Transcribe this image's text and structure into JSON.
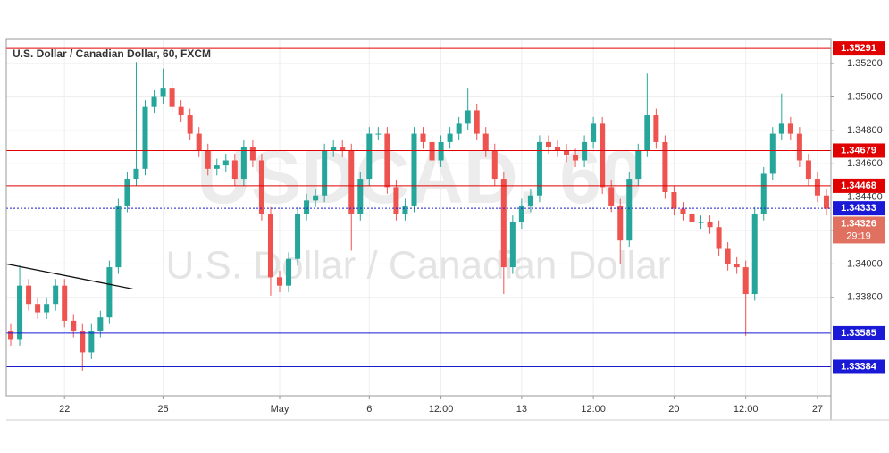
{
  "chart_data": {
    "type": "candlestick",
    "title": "U.S. Dollar / Canadian Dollar, 60, FXCM",
    "watermark": [
      "USDCAD, 60",
      "U.S. Dollar / Canadian Dollar"
    ],
    "open": [
      1.336,
      1.3355,
      1.3387,
      1.3376,
      1.3371,
      1.3376,
      1.3387,
      1.3366,
      1.336,
      1.3347,
      1.336,
      1.3368,
      1.3398,
      1.3435,
      1.3451,
      1.3457,
      1.3494,
      1.35,
      1.3505,
      1.3494,
      1.3489,
      1.3478,
      1.3468,
      1.3457,
      1.3459,
      1.3462,
      1.3451,
      1.347,
      1.3462,
      1.343,
      1.3392,
      1.3387,
      1.3403,
      1.343,
      1.3438,
      1.3441,
      1.3468,
      1.347,
      1.3468,
      1.343,
      1.3451,
      1.3478,
      1.3478,
      1.3446,
      1.343,
      1.3435,
      1.3478,
      1.3473,
      1.3462,
      1.3473,
      1.3478,
      1.3484,
      1.3492,
      1.3478,
      1.3468,
      1.3451,
      1.3398,
      1.3425,
      1.3435,
      1.3441,
      1.3473,
      1.347,
      1.3468,
      1.3465,
      1.3462,
      1.3473,
      1.3484,
      1.3446,
      1.3435,
      1.3414,
      1.3451,
      1.3468,
      1.3489,
      1.3473,
      1.3443,
      1.3433,
      1.343,
      1.3425,
      1.3425,
      1.3422,
      1.3409,
      1.34,
      1.3398,
      1.3382,
      1.343,
      1.3454,
      1.3478,
      1.3484,
      1.3478,
      1.3462,
      1.3451,
      1.3441
    ],
    "high": [
      1.3364,
      1.3399,
      1.3391,
      1.338,
      1.338,
      1.3391,
      1.3391,
      1.337,
      1.3364,
      1.3364,
      1.3372,
      1.3402,
      1.3439,
      1.3455,
      1.3521,
      1.3498,
      1.3504,
      1.3517,
      1.3509,
      1.3498,
      1.3493,
      1.3482,
      1.3472,
      1.3463,
      1.3466,
      1.3466,
      1.3474,
      1.3474,
      1.3466,
      1.3434,
      1.3396,
      1.3407,
      1.3434,
      1.3442,
      1.3445,
      1.3472,
      1.3474,
      1.3474,
      1.3472,
      1.3455,
      1.3482,
      1.3482,
      1.3482,
      1.345,
      1.3439,
      1.3482,
      1.3482,
      1.3477,
      1.3477,
      1.3482,
      1.3488,
      1.3505,
      1.3496,
      1.3482,
      1.3472,
      1.3455,
      1.3429,
      1.3439,
      1.3445,
      1.3477,
      1.3477,
      1.3474,
      1.3472,
      1.3469,
      1.3477,
      1.3488,
      1.3488,
      1.345,
      1.3439,
      1.3455,
      1.3472,
      1.3514,
      1.3493,
      1.3477,
      1.3447,
      1.3437,
      1.3434,
      1.3429,
      1.3429,
      1.3426,
      1.3413,
      1.3404,
      1.3402,
      1.3434,
      1.3458,
      1.3482,
      1.3502,
      1.3488,
      1.3482,
      1.3466,
      1.3455,
      1.3445
    ],
    "low": [
      1.3351,
      1.3351,
      1.3372,
      1.3367,
      1.3367,
      1.3372,
      1.3362,
      1.3356,
      1.3336,
      1.3343,
      1.3356,
      1.3364,
      1.3394,
      1.3431,
      1.3447,
      1.3453,
      1.349,
      1.3496,
      1.349,
      1.3485,
      1.3474,
      1.3464,
      1.3453,
      1.3453,
      1.3455,
      1.3447,
      1.3447,
      1.3458,
      1.3426,
      1.3381,
      1.3383,
      1.3383,
      1.3399,
      1.3426,
      1.3434,
      1.3437,
      1.3464,
      1.3464,
      1.3408,
      1.3426,
      1.3447,
      1.3474,
      1.3442,
      1.3426,
      1.3426,
      1.3431,
      1.3469,
      1.3458,
      1.3458,
      1.3469,
      1.3474,
      1.348,
      1.3474,
      1.3464,
      1.3447,
      1.3382,
      1.3394,
      1.3421,
      1.3431,
      1.3437,
      1.3466,
      1.3464,
      1.3461,
      1.3458,
      1.3458,
      1.3469,
      1.3442,
      1.3431,
      1.34,
      1.341,
      1.3447,
      1.3464,
      1.3469,
      1.3439,
      1.3429,
      1.3426,
      1.3421,
      1.3421,
      1.3418,
      1.3405,
      1.3396,
      1.3394,
      1.3357,
      1.3378,
      1.3426,
      1.345,
      1.3474,
      1.3474,
      1.3458,
      1.3447,
      1.3437,
      1.3429
    ],
    "close": [
      1.3355,
      1.3387,
      1.3376,
      1.3371,
      1.3376,
      1.3387,
      1.3366,
      1.336,
      1.3347,
      1.336,
      1.3368,
      1.3398,
      1.3435,
      1.3451,
      1.3457,
      1.3494,
      1.35,
      1.3505,
      1.3494,
      1.3489,
      1.3478,
      1.3468,
      1.3457,
      1.3459,
      1.3462,
      1.3451,
      1.347,
      1.3462,
      1.343,
      1.3392,
      1.3387,
      1.3403,
      1.343,
      1.3438,
      1.3441,
      1.3468,
      1.347,
      1.3468,
      1.343,
      1.3451,
      1.3478,
      1.3478,
      1.3446,
      1.343,
      1.3435,
      1.3478,
      1.3473,
      1.3462,
      1.3473,
      1.3478,
      1.3484,
      1.3492,
      1.3478,
      1.3468,
      1.3451,
      1.3398,
      1.3425,
      1.3435,
      1.3441,
      1.3473,
      1.347,
      1.3468,
      1.3465,
      1.3462,
      1.3473,
      1.3484,
      1.3446,
      1.3435,
      1.3414,
      1.3451,
      1.3468,
      1.3489,
      1.3473,
      1.3443,
      1.3433,
      1.343,
      1.3425,
      1.3425,
      1.3422,
      1.3409,
      1.34,
      1.3398,
      1.3382,
      1.343,
      1.3454,
      1.3478,
      1.3484,
      1.3478,
      1.3462,
      1.3451,
      1.3441,
      1.3433
    ],
    "up_color": "#26a69a",
    "down_color": "#ef5350",
    "xlim": [
      -0.5,
      91.5
    ],
    "xticks": [
      {
        "value": 6,
        "label": "22"
      },
      {
        "value": 17,
        "label": "25"
      },
      {
        "value": 30,
        "label": "May"
      },
      {
        "value": 40,
        "label": "6"
      },
      {
        "value": 48,
        "label": "12:00"
      },
      {
        "value": 57,
        "label": "13"
      },
      {
        "value": 65,
        "label": "12:00"
      },
      {
        "value": 74,
        "label": "20"
      },
      {
        "value": 82,
        "label": "12:00"
      },
      {
        "value": 90,
        "label": "27"
      }
    ],
    "ylim": [
      1.3321,
      1.35345
    ],
    "yticks": [
      {
        "value": 1.352,
        "label": "1.35200"
      },
      {
        "value": 1.35,
        "label": "1.35000"
      },
      {
        "value": 1.348,
        "label": "1.34800"
      },
      {
        "value": 1.346,
        "label": "1.34600"
      },
      {
        "value": 1.344,
        "label": "1.34400"
      },
      {
        "value": 1.342,
        "label": "1.34200"
      },
      {
        "value": 1.34,
        "label": "1.34000"
      },
      {
        "value": 1.338,
        "label": "1.33800"
      }
    ],
    "grid": true,
    "levels": [
      {
        "value": 1.35291,
        "color": "#e00000"
      },
      {
        "value": 1.34679,
        "color": "#e00000"
      },
      {
        "value": 1.34468,
        "color": "#e00000"
      },
      {
        "value": 1.34333,
        "color": "#1a1ad6",
        "style": "dotted"
      },
      {
        "value": 1.33585,
        "color": "#1a1ad6"
      },
      {
        "value": 1.33384,
        "color": "#1a1ad6"
      }
    ],
    "current_price": {
      "value": 1.34326,
      "countdown": "29:19",
      "color": "#e0705f"
    },
    "trend_line": {
      "x": [
        -0.5,
        13.6
      ],
      "y": [
        1.34,
        1.3385
      ],
      "color": "#111111"
    }
  }
}
